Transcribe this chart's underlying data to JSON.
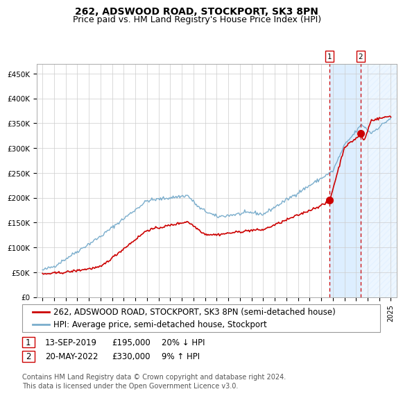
{
  "title": "262, ADSWOOD ROAD, STOCKPORT, SK3 8PN",
  "subtitle": "Price paid vs. HM Land Registry's House Price Index (HPI)",
  "ylim": [
    0,
    470000
  ],
  "yticks": [
    0,
    50000,
    100000,
    150000,
    200000,
    250000,
    300000,
    350000,
    400000,
    450000
  ],
  "ytick_labels": [
    "£0",
    "£50K",
    "£100K",
    "£150K",
    "£200K",
    "£250K",
    "£300K",
    "£350K",
    "£400K",
    "£450K"
  ],
  "red_line_color": "#cc0000",
  "blue_line_color": "#7aadcc",
  "marker_color": "#cc0000",
  "vline_color": "#cc0000",
  "shade_color": "#ddeeff",
  "transaction1_date": 2019.71,
  "transaction1_value": 195000,
  "transaction2_date": 2022.38,
  "transaction2_value": 330000,
  "legend_label_red": "262, ADSWOOD ROAD, STOCKPORT, SK3 8PN (semi-detached house)",
  "legend_label_blue": "HPI: Average price, semi-detached house, Stockport",
  "note1_date": "13-SEP-2019",
  "note1_price": "£195,000",
  "note1_hpi": "20% ↓ HPI",
  "note2_date": "20-MAY-2022",
  "note2_price": "£330,000",
  "note2_hpi": "9% ↑ HPI",
  "footer": "Contains HM Land Registry data © Crown copyright and database right 2024.\nThis data is licensed under the Open Government Licence v3.0.",
  "title_fontsize": 10,
  "subtitle_fontsize": 9,
  "tick_fontsize": 7.5,
  "legend_fontsize": 8.5,
  "note_fontsize": 8.5,
  "footer_fontsize": 7,
  "background_color": "#ffffff",
  "plot_bg_color": "#ffffff",
  "grid_color": "#cccccc"
}
